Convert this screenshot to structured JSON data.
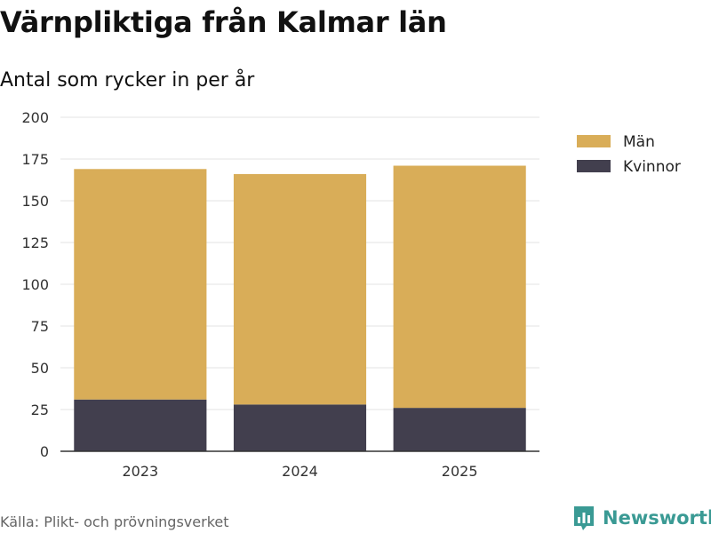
{
  "title": "Värnpliktiga från Kalmar län",
  "subtitle": "Antal som rycker in per år",
  "source": "Källa: Plikt- och prövningsverket",
  "brand": {
    "name": "Newsworthy",
    "icon": "newsworthy-logo-icon"
  },
  "colors": {
    "man": "#d9ad58",
    "kvinnor": "#423f4e",
    "brand": "#3a9a94"
  },
  "chart_data": {
    "type": "bar",
    "stacked": true,
    "categories": [
      "2023",
      "2024",
      "2025"
    ],
    "series": [
      {
        "name": "Kvinnor",
        "values": [
          31,
          28,
          26
        ],
        "color": "#423f4e"
      },
      {
        "name": "Män",
        "values": [
          138,
          138,
          145
        ],
        "color": "#d9ad58"
      }
    ],
    "ylim": [
      0,
      200
    ],
    "yticks": [
      0,
      25,
      50,
      75,
      100,
      125,
      150,
      175,
      200
    ],
    "grid": true,
    "legend": {
      "position": "right",
      "order": [
        "Män",
        "Kvinnor"
      ]
    }
  }
}
